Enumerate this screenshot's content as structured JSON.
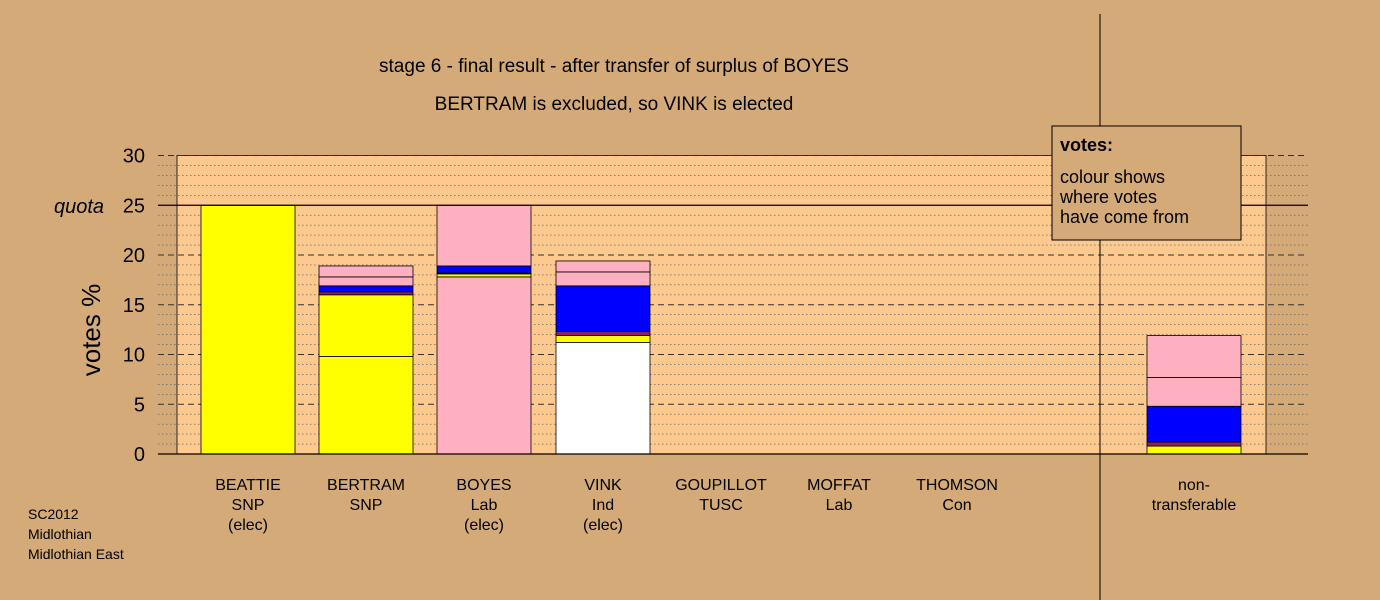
{
  "colors": {
    "background": "#d4aa78",
    "plot_background": "#fdc98e",
    "legend_background": "#d4aa78",
    "yellow": "#ffff00",
    "pink": "#ffb0c0",
    "blue": "#0000ff",
    "purple": "#8b1f6a",
    "white": "#ffffff"
  },
  "footer": {
    "line1": "SC2012",
    "line2": "Midlothian",
    "line3": "Midlothian East"
  },
  "legend": {
    "title": "votes:",
    "line1": "colour shows",
    "line2": "where votes",
    "line3": "have come from"
  },
  "chart_data": {
    "type": "bar",
    "stacked": true,
    "title": "stage 6 - final result - after transfer of surplus of BOYES",
    "subtitle": "BERTRAM is excluded, so VINK is elected",
    "ylabel": "votes %",
    "ylim": [
      0,
      30
    ],
    "yticks": [
      "0",
      "5",
      "10",
      "15",
      "20",
      "25",
      "30"
    ],
    "quota": {
      "label": "quota",
      "value": 25
    },
    "grid": true,
    "legend_placement": "top-right",
    "categories": [
      {
        "line1": "BEATTIE",
        "line2": "SNP",
        "line3": "(elec)"
      },
      {
        "line1": "BERTRAM",
        "line2": "SNP",
        "line3": ""
      },
      {
        "line1": "BOYES",
        "line2": "Lab",
        "line3": "(elec)"
      },
      {
        "line1": "VINK",
        "line2": "Ind",
        "line3": "(elec)"
      },
      {
        "line1": "GOUPILLOT",
        "line2": "TUSC",
        "line3": ""
      },
      {
        "line1": "MOFFAT",
        "line2": "Lab",
        "line3": ""
      },
      {
        "line1": "THOMSON",
        "line2": "Con",
        "line3": ""
      },
      {
        "line1": "non-",
        "line2": "transferable",
        "line3": ""
      }
    ],
    "bars": [
      [
        {
          "value": 25.0,
          "color": "yellow"
        }
      ],
      [
        {
          "value": 9.8,
          "color": "yellow"
        },
        {
          "value": 6.2,
          "color": "yellow"
        },
        {
          "value": 0.3,
          "color": "purple"
        },
        {
          "value": 0.6,
          "color": "blue"
        },
        {
          "value": 0.9,
          "color": "pink"
        },
        {
          "value": 1.1,
          "color": "pink"
        }
      ],
      [
        {
          "value": 17.8,
          "color": "pink"
        },
        {
          "value": 0.3,
          "color": "yellow"
        },
        {
          "value": 0.1,
          "color": "purple"
        },
        {
          "value": 0.7,
          "color": "blue"
        },
        {
          "value": 6.1,
          "color": "pink"
        }
      ],
      [
        {
          "value": 11.2,
          "color": "white"
        },
        {
          "value": 0.7,
          "color": "yellow"
        },
        {
          "value": 0.4,
          "color": "purple"
        },
        {
          "value": 4.6,
          "color": "blue"
        },
        {
          "value": 1.4,
          "color": "pink"
        },
        {
          "value": 1.1,
          "color": "pink"
        }
      ],
      [],
      [],
      [],
      [
        {
          "value": 0.8,
          "color": "yellow"
        },
        {
          "value": 0.4,
          "color": "purple"
        },
        {
          "value": 3.6,
          "color": "blue"
        },
        {
          "value": 2.9,
          "color": "pink"
        },
        {
          "value": 4.2,
          "color": "pink"
        }
      ]
    ]
  }
}
